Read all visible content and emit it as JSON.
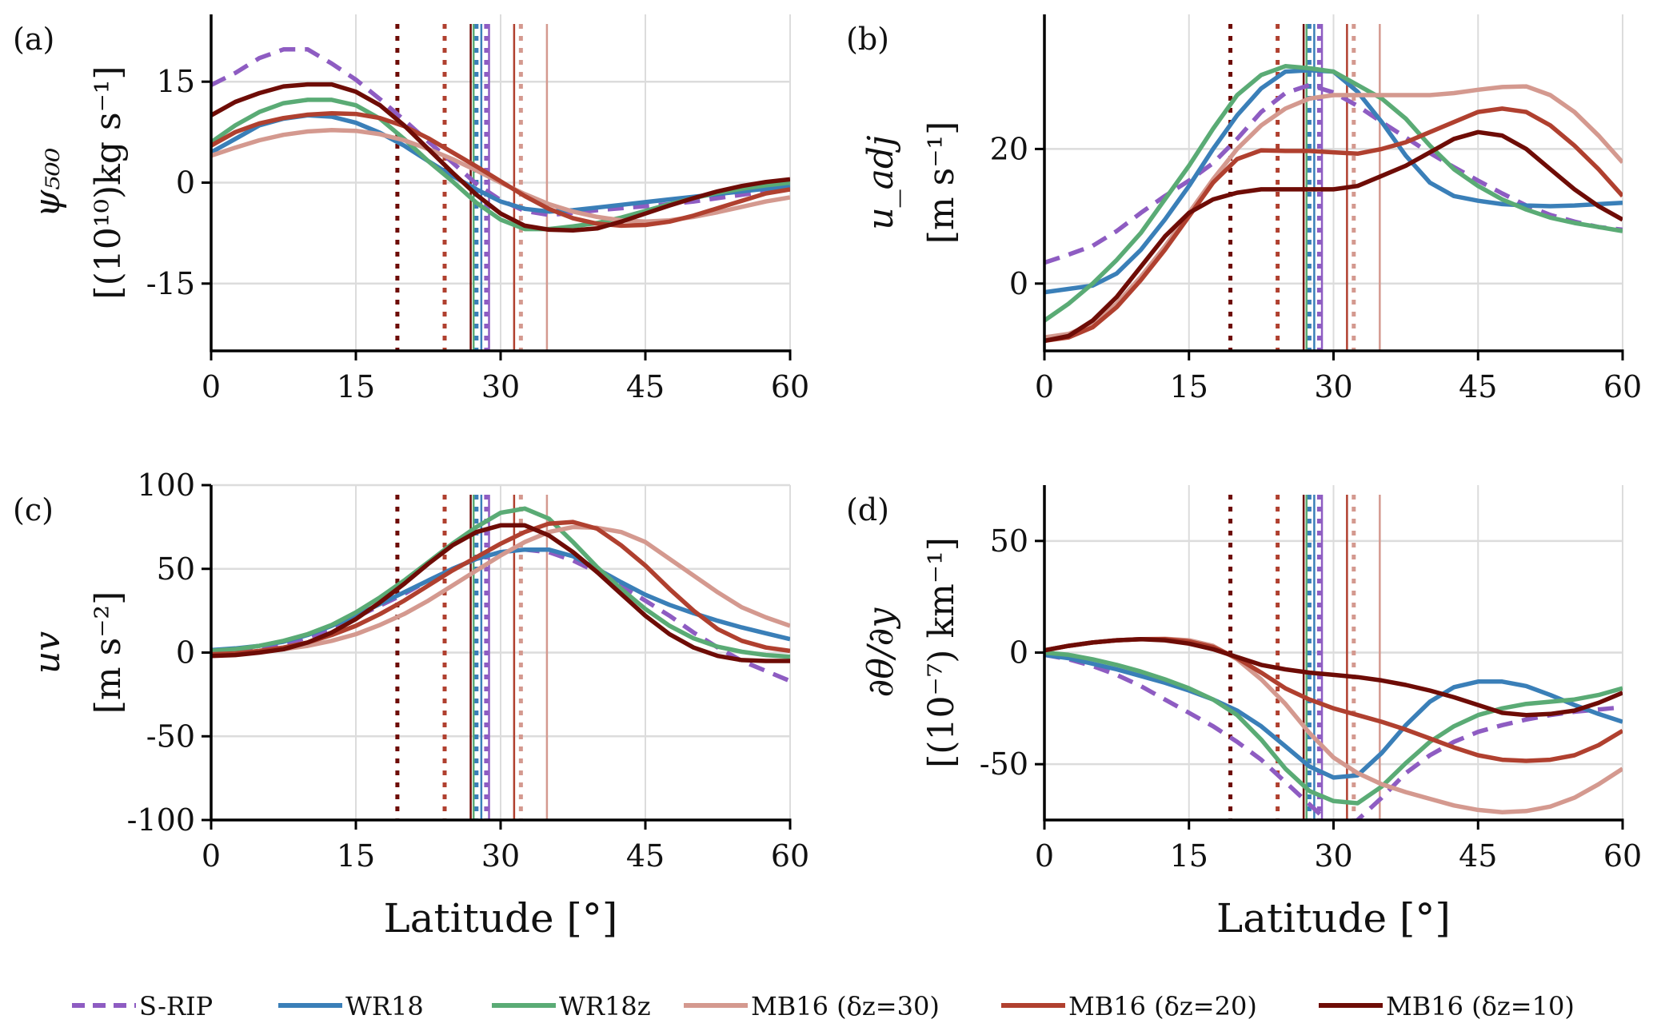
{
  "chart_data": {
    "type": "line",
    "legend": {
      "placement": "bottom",
      "entries": [
        {
          "name": "S-RIP",
          "color": "#8e5cc2",
          "style": "dashed"
        },
        {
          "name": "WR18",
          "color": "#3a7fb8",
          "style": "solid"
        },
        {
          "name": "WR18z",
          "color": "#5aab75",
          "style": "solid"
        },
        {
          "name": "MB16 (δz=30)",
          "color": "#d4998f",
          "style": "solid"
        },
        {
          "name": "MB16 (δz=20)",
          "color": "#b0402f",
          "style": "solid"
        },
        {
          "name": "MB16 (δz=10)",
          "color": "#6e0c06",
          "style": "solid"
        }
      ]
    },
    "x": [
      0,
      2.5,
      5,
      7.5,
      10,
      12.5,
      15,
      17.5,
      20,
      22.5,
      25,
      27.5,
      30,
      32.5,
      35,
      37.5,
      40,
      42.5,
      45,
      47.5,
      50,
      52.5,
      55,
      57.5,
      60
    ],
    "xlabel": "Latitude [°]",
    "xticks": [
      "0",
      "15",
      "30",
      "45",
      "60"
    ],
    "xlim": [
      0,
      60
    ],
    "grid": true,
    "vertical_lines": [
      {
        "series": "MB16 (δz=10)",
        "style": "dotted",
        "x": 19.3
      },
      {
        "series": "MB16 (δz=20)",
        "style": "dotted",
        "x": 24.2
      },
      {
        "series": "MB16 (δz=10)",
        "style": "solid",
        "x": 26.9
      },
      {
        "series": "WR18z",
        "style": "solid",
        "x": 27.2
      },
      {
        "series": "WR18",
        "style": "dotted",
        "x": 27.5
      },
      {
        "series": "WR18",
        "style": "solid",
        "x": 28.0
      },
      {
        "series": "S-RIP",
        "style": "dotted",
        "x": 28.5
      },
      {
        "series": "S-RIP",
        "style": "solid",
        "x": 28.8
      },
      {
        "series": "MB16 (δz=20)",
        "style": "solid",
        "x": 31.4
      },
      {
        "series": "MB16 (δz=30)",
        "style": "dotted",
        "x": 32.1
      },
      {
        "series": "MB16 (δz=30)",
        "style": "solid",
        "x": 34.8
      }
    ],
    "panels": [
      {
        "label": "(a)",
        "ylabel_line1": "ψ₅₀₀",
        "ylabel_line2": "[(10¹⁰)kg s⁻¹]",
        "ylim": [
          -25,
          25
        ],
        "yticks": [
          {
            "v": 15,
            "t": "15"
          },
          {
            "v": 0,
            "t": "0"
          },
          {
            "v": -15,
            "t": "-15"
          }
        ],
        "series": [
          {
            "name": "S-RIP",
            "values": [
              14.5,
              16.3,
              18.5,
              19.8,
              19.8,
              17.7,
              15.3,
              12.4,
              9.3,
              6.1,
              3.0,
              -0.2,
              -2.6,
              -4.2,
              -4.8,
              -4.5,
              -4.1,
              -3.8,
              -3.5,
              -3.2,
              -2.8,
              -2.3,
              -1.8,
              -1.3,
              -1.0
            ]
          },
          {
            "name": "WR18",
            "values": [
              4.5,
              6.5,
              8.5,
              9.5,
              10.0,
              9.8,
              8.9,
              7.4,
              5.5,
              3.2,
              1.0,
              -1.0,
              -2.8,
              -3.9,
              -4.3,
              -4.1,
              -3.7,
              -3.3,
              -2.9,
              -2.5,
              -2.1,
              -1.7,
              -1.3,
              -0.9,
              -0.5
            ]
          },
          {
            "name": "WR18z",
            "values": [
              6.0,
              8.5,
              10.5,
              11.8,
              12.3,
              12.3,
              11.5,
              9.5,
              6.5,
              3.2,
              0.2,
              -3.0,
              -5.5,
              -6.9,
              -6.9,
              -6.5,
              -6.0,
              -5.2,
              -4.2,
              -3.2,
              -2.3,
              -1.5,
              -0.9,
              -0.4,
              0.0
            ]
          },
          {
            "name": "MB16 (δz=30)",
            "values": [
              4.0,
              5.2,
              6.3,
              7.1,
              7.6,
              7.8,
              7.7,
              7.2,
              6.3,
              5.0,
              3.5,
              1.8,
              0.0,
              -1.7,
              -3.2,
              -4.3,
              -5.1,
              -5.6,
              -5.8,
              -5.6,
              -5.1,
              -4.4,
              -3.6,
              -2.8,
              -2.2
            ]
          },
          {
            "name": "MB16 (δz=20)",
            "values": [
              5.5,
              7.5,
              8.8,
              9.6,
              10.1,
              10.3,
              10.2,
              9.6,
              8.4,
              6.6,
              4.5,
              2.4,
              0.2,
              -2.0,
              -3.9,
              -5.3,
              -6.1,
              -6.4,
              -6.3,
              -5.8,
              -4.9,
              -3.8,
              -2.7,
              -1.6,
              -1.0
            ]
          },
          {
            "name": "MB16 (δz=10)",
            "values": [
              10.0,
              12.0,
              13.3,
              14.3,
              14.6,
              14.6,
              13.5,
              11.5,
              8.5,
              5.0,
              1.5,
              -1.8,
              -4.6,
              -6.4,
              -7.0,
              -7.1,
              -6.8,
              -5.8,
              -4.6,
              -3.4,
              -2.3,
              -1.3,
              -0.5,
              0.1,
              0.5
            ]
          }
        ]
      },
      {
        "label": "(b)",
        "ylabel_line1": "u_adj",
        "ylabel_line2": "[m s⁻¹]",
        "ylim": [
          -10,
          40
        ],
        "yticks": [
          {
            "v": 20,
            "t": "20"
          },
          {
            "v": 0,
            "t": "0"
          }
        ],
        "series": [
          {
            "name": "S-RIP",
            "values": [
              3.1,
              4.3,
              5.6,
              7.8,
              10.5,
              13.0,
              15.3,
              17.9,
              21.5,
              25.5,
              28.3,
              29.5,
              28.4,
              26.4,
              24.0,
              21.7,
              19.4,
              17.3,
              15.3,
              13.4,
              11.6,
              10.2,
              9.2,
              8.4,
              8.0
            ]
          },
          {
            "name": "WR18",
            "values": [
              -1.3,
              -0.8,
              -0.3,
              1.5,
              5.0,
              9.5,
              14.5,
              20.0,
              25.0,
              29.0,
              31.5,
              31.7,
              31.5,
              28.5,
              24.0,
              19.0,
              15.0,
              13.0,
              12.3,
              11.8,
              11.6,
              11.5,
              11.6,
              11.8,
              12.0
            ]
          },
          {
            "name": "WR18z",
            "values": [
              -5.5,
              -3.0,
              0.0,
              3.5,
              7.5,
              12.5,
              17.5,
              23.0,
              28.0,
              31.0,
              32.3,
              32.0,
              31.5,
              29.5,
              27.5,
              24.5,
              20.5,
              17.0,
              14.5,
              12.5,
              11.0,
              9.8,
              9.0,
              8.4,
              7.8
            ]
          },
          {
            "name": "MB16 (δz=30)",
            "values": [
              -8.0,
              -7.5,
              -6.0,
              -3.0,
              1.0,
              5.5,
              10.5,
              15.5,
              20.0,
              23.5,
              26.0,
              27.5,
              28.0,
              28.0,
              28.0,
              28.0,
              28.0,
              28.3,
              28.8,
              29.2,
              29.3,
              28.0,
              25.5,
              22.0,
              18.0
            ]
          },
          {
            "name": "MB16 (δz=20)",
            "values": [
              -8.5,
              -8.0,
              -6.5,
              -3.5,
              0.5,
              5.0,
              10.0,
              15.0,
              18.5,
              19.8,
              19.7,
              19.7,
              19.5,
              19.3,
              20.0,
              21.0,
              22.5,
              24.0,
              25.5,
              26.0,
              25.5,
              23.5,
              20.5,
              17.0,
              13.0
            ]
          },
          {
            "name": "MB16 (δz=10)",
            "values": [
              -8.5,
              -7.8,
              -5.5,
              -2.0,
              2.5,
              7.0,
              10.5,
              12.5,
              13.5,
              14.0,
              14.0,
              14.0,
              14.0,
              14.5,
              16.0,
              17.5,
              19.5,
              21.5,
              22.5,
              22.0,
              20.0,
              17.0,
              14.0,
              11.5,
              9.5
            ]
          }
        ]
      },
      {
        "label": "(c)",
        "ylabel_line1": "uv",
        "ylabel_line2": "[m s⁻²]",
        "ylim": [
          -100,
          100
        ],
        "yticks": [
          {
            "v": 100,
            "t": "100"
          },
          {
            "v": 50,
            "t": "50"
          },
          {
            "v": 0,
            "t": "0"
          },
          {
            "v": -50,
            "t": "-50"
          },
          {
            "v": -100,
            "t": "-100"
          }
        ],
        "series": [
          {
            "name": "S-RIP",
            "values": [
              0.5,
              1.0,
              2.5,
              5.0,
              9.0,
              14.0,
              21.0,
              28.0,
              35.0,
              43.0,
              50.0,
              56.0,
              60.0,
              61.5,
              60.0,
              55.0,
              48.0,
              40.0,
              31.0,
              22.0,
              12.0,
              3.0,
              -5.0,
              -11.0,
              -17.0
            ]
          },
          {
            "name": "WR18",
            "values": [
              1.5,
              2.5,
              4.0,
              6.5,
              10.5,
              16.0,
              22.0,
              29.0,
              36.0,
              43.0,
              50.0,
              56.0,
              60.0,
              61.5,
              61.5,
              57.5,
              50.0,
              42.0,
              34.5,
              28.5,
              23.5,
              19.0,
              15.0,
              11.5,
              8.0
            ]
          },
          {
            "name": "WR18z",
            "values": [
              1.0,
              2.0,
              4.0,
              7.0,
              11.0,
              16.5,
              24.0,
              33.0,
              43.0,
              54.0,
              65.0,
              75.0,
              83.5,
              86.0,
              80.0,
              66.0,
              51.0,
              38.0,
              26.0,
              16.0,
              8.5,
              3.5,
              0.5,
              -1.5,
              -2.5
            ]
          },
          {
            "name": "MB16 (δz=30)",
            "values": [
              -1.0,
              -0.5,
              0.5,
              2.0,
              4.0,
              7.0,
              11.0,
              16.5,
              23.0,
              31.0,
              40.0,
              49.0,
              58.0,
              66.0,
              72.0,
              75.0,
              74.5,
              72.0,
              66.0,
              56.0,
              46.0,
              36.0,
              27.0,
              21.0,
              16.0
            ]
          },
          {
            "name": "MB16 (δz=20)",
            "values": [
              -1.0,
              -0.5,
              1.0,
              3.0,
              6.0,
              10.5,
              16.0,
              23.0,
              31.0,
              40.0,
              49.0,
              57.0,
              65.0,
              72.0,
              77.0,
              78.0,
              74.0,
              64.0,
              52.0,
              38.0,
              25.0,
              14.0,
              7.0,
              3.0,
              1.0
            ]
          },
          {
            "name": "MB16 (δz=10)",
            "values": [
              -2.0,
              -1.5,
              0.0,
              2.0,
              6.0,
              12.0,
              20.0,
              30.0,
              41.0,
              53.0,
              64.0,
              72.0,
              76.0,
              76.0,
              70.0,
              60.0,
              48.0,
              35.0,
              22.0,
              11.0,
              3.0,
              -2.0,
              -4.5,
              -5.0,
              -5.0
            ]
          }
        ]
      },
      {
        "label": "(d)",
        "ylabel_line1": "∂θ/∂y",
        "ylabel_line2": "[(10⁻⁷) km⁻¹]",
        "ylim": [
          -75,
          75
        ],
        "yticks": [
          {
            "v": 50,
            "t": "50"
          },
          {
            "v": 0,
            "t": "0"
          },
          {
            "v": -50,
            "t": "-50"
          }
        ],
        "series": [
          {
            "name": "S-RIP",
            "values": [
              -1.0,
              -3.0,
              -6.0,
              -10.0,
              -15.0,
              -21.0,
              -27.0,
              -33.0,
              -40.0,
              -48.0,
              -58.0,
              -68.0,
              -78.0,
              -75.0,
              -65.0,
              -54.0,
              -46.0,
              -40.0,
              -35.5,
              -32.5,
              -30.0,
              -28.0,
              -26.5,
              -25.5,
              -24.5
            ]
          },
          {
            "name": "WR18",
            "values": [
              -1.0,
              -2.5,
              -5.0,
              -7.5,
              -10.5,
              -13.5,
              -17.0,
              -21.0,
              -26.0,
              -33.0,
              -42.0,
              -51.0,
              -56.0,
              -55.0,
              -45.0,
              -32.5,
              -22.0,
              -15.5,
              -13.0,
              -13.0,
              -15.0,
              -19.0,
              -23.5,
              -27.5,
              -31.0
            ]
          },
          {
            "name": "WR18z",
            "values": [
              0.0,
              -1.0,
              -3.0,
              -5.5,
              -8.5,
              -12.0,
              -16.0,
              -21.0,
              -28.0,
              -39.0,
              -52.0,
              -62.0,
              -66.5,
              -67.5,
              -60.0,
              -49.5,
              -40.0,
              -33.0,
              -28.0,
              -25.0,
              -23.0,
              -22.0,
              -21.0,
              -19.0,
              -16.0
            ]
          },
          {
            "name": "MB16 (δz=30)",
            "values": [
              1.0,
              3.0,
              4.5,
              5.5,
              6.0,
              6.2,
              5.5,
              3.0,
              -3.0,
              -12.0,
              -23.0,
              -36.0,
              -47.0,
              -54.0,
              -59.0,
              -62.5,
              -65.5,
              -68.5,
              -70.5,
              -71.5,
              -71.0,
              -69.0,
              -65.0,
              -59.0,
              -52.0
            ]
          },
          {
            "name": "MB16 (δz=20)",
            "values": [
              1.0,
              3.0,
              4.5,
              5.5,
              6.0,
              6.0,
              5.0,
              2.5,
              -2.5,
              -9.0,
              -16.0,
              -21.0,
              -25.0,
              -28.0,
              -31.0,
              -34.5,
              -38.5,
              -42.5,
              -46.0,
              -48.0,
              -48.5,
              -48.0,
              -46.0,
              -41.5,
              -35.0
            ]
          },
          {
            "name": "MB16 (δz=10)",
            "values": [
              1.0,
              3.0,
              4.5,
              5.5,
              6.0,
              5.5,
              4.0,
              1.5,
              -2.0,
              -5.5,
              -7.5,
              -9.0,
              -10.0,
              -11.0,
              -12.5,
              -14.5,
              -17.0,
              -20.0,
              -23.5,
              -27.0,
              -28.0,
              -27.5,
              -26.0,
              -22.5,
              -18.0
            ]
          }
        ]
      }
    ]
  }
}
